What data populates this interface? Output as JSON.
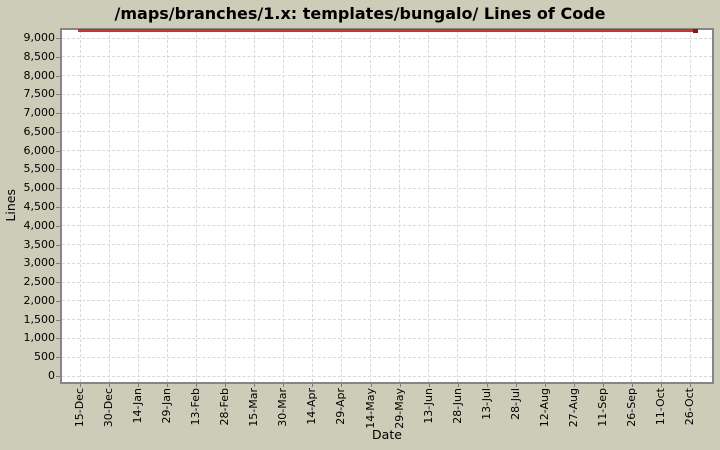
{
  "title": "/maps/branches/1.x: templates/bungalo/ Lines of Code",
  "colors": {
    "background": "#cdccb9",
    "plot_background": "#ffffff",
    "plot_border": "#858585",
    "grid": "#d9d9d9",
    "series_line": "#c2392c",
    "series_endcap": "#8e150b",
    "text": "#000000"
  },
  "chart_data": {
    "type": "line",
    "title": "/maps/branches/1.x: templates/bungalo/ Lines of Code",
    "xlabel": "Date",
    "ylabel": "Lines",
    "grid": true,
    "legend_position": "none",
    "ylim": [
      0,
      9250
    ],
    "y_ticks": [
      0,
      500,
      1000,
      1500,
      2000,
      2500,
      3000,
      3500,
      4000,
      4500,
      5000,
      5500,
      6000,
      6500,
      7000,
      7500,
      8000,
      8500,
      9000
    ],
    "y_tick_labels": [
      "0",
      "500",
      "1,000",
      "1,500",
      "2,000",
      "2,500",
      "3,000",
      "3,500",
      "4,000",
      "4,500",
      "5,000",
      "5,500",
      "6,000",
      "6,500",
      "7,000",
      "7,500",
      "8,000",
      "8,500",
      "9,000"
    ],
    "categories": [
      "15-Dec",
      "30-Dec",
      "14-Jan",
      "29-Jan",
      "13-Feb",
      "28-Feb",
      "15-Mar",
      "30-Mar",
      "14-Apr",
      "29-Apr",
      "14-May",
      "29-May",
      "13-Jun",
      "28-Jun",
      "13-Jul",
      "28-Jul",
      "12-Aug",
      "27-Aug",
      "11-Sep",
      "26-Sep",
      "11-Oct",
      "26-Oct"
    ],
    "series": [
      {
        "name": "Lines of Code",
        "color": "#c2392c",
        "values": [
          9200,
          9200,
          9200,
          9200,
          9200,
          9200,
          9200,
          9200,
          9200,
          9200,
          9200,
          9200,
          9200,
          9200,
          9200,
          9200,
          9200,
          9200,
          9200,
          9200,
          9200,
          9200
        ],
        "note": "constant horizontal line drawn at the very top edge of the plot area"
      }
    ]
  }
}
